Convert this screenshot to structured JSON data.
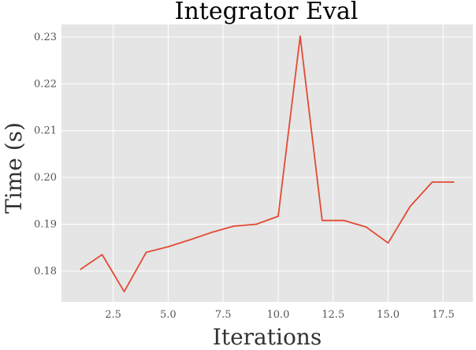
{
  "chart_data": {
    "type": "line",
    "title": "Integrator Eval",
    "xlabel": "Iterations",
    "ylabel": "Time (s)",
    "xlim": [
      0.15,
      18.85
    ],
    "ylim": [
      0.1734,
      0.2327
    ],
    "xticks": [
      2.5,
      5.0,
      7.5,
      10.0,
      12.5,
      15.0,
      17.5
    ],
    "xtick_labels": [
      "2.5",
      "5.0",
      "7.5",
      "10.0",
      "12.5",
      "15.0",
      "17.5"
    ],
    "yticks": [
      0.18,
      0.19,
      0.2,
      0.21,
      0.22,
      0.23
    ],
    "ytick_labels": [
      "0.18",
      "0.19",
      "0.20",
      "0.21",
      "0.22",
      "0.23"
    ],
    "grid": true,
    "series_color": "#e24a33",
    "background_color": "#e5e5e5",
    "x": [
      1,
      2,
      3,
      4,
      5,
      6,
      7,
      8,
      9,
      10,
      11,
      12,
      13,
      14,
      15,
      16,
      17,
      18
    ],
    "y": [
      0.1803,
      0.1835,
      0.1756,
      0.184,
      0.1852,
      0.1867,
      0.1883,
      0.1896,
      0.19,
      0.1917,
      0.2302,
      0.1908,
      0.1908,
      0.1894,
      0.186,
      0.1938,
      0.199,
      0.199
    ]
  }
}
